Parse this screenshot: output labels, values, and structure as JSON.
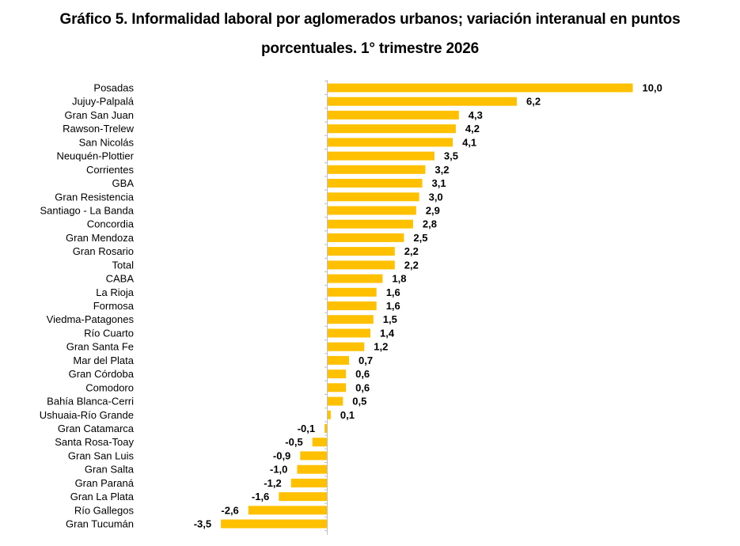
{
  "chart_data": {
    "type": "bar",
    "orientation": "horizontal",
    "title_line1": "Gráfico 5. Informalidad laboral por aglomerados urbanos; variación interanual en puntos",
    "title_line2": "porcentuales. 1° trimestre 2026",
    "categories": [
      "Posadas",
      "Jujuy-Palpalá",
      "Gran San Juan",
      "Rawson-Trelew",
      "San Nicolás",
      "Neuquén-Plottier",
      "Corrientes",
      "GBA",
      "Gran Resistencia",
      "Santiago - La Banda",
      "Concordia",
      "Gran Mendoza",
      "Gran Rosario",
      "Total",
      "CABA",
      "La Rioja",
      "Formosa",
      "Viedma-Patagones",
      "Río Cuarto",
      "Gran Santa Fe",
      "Mar del Plata",
      "Gran Córdoba",
      "Comodoro",
      "Bahía Blanca-Cerri",
      "Ushuaia-Río Grande",
      "Gran Catamarca",
      "Santa Rosa-Toay",
      "Gran San Luis",
      "Gran Salta",
      "Gran Paraná",
      "Gran La Plata",
      "Río Gallegos",
      "Gran Tucumán"
    ],
    "values": [
      10.0,
      6.2,
      4.3,
      4.2,
      4.1,
      3.5,
      3.2,
      3.1,
      3.0,
      2.9,
      2.8,
      2.5,
      2.2,
      2.2,
      1.8,
      1.6,
      1.6,
      1.5,
      1.4,
      1.2,
      0.7,
      0.6,
      0.6,
      0.5,
      0.1,
      -0.1,
      -0.5,
      -0.9,
      -1.0,
      -1.2,
      -1.6,
      -2.6,
      -3.5
    ],
    "value_labels": [
      "10,0",
      "6,2",
      "4,3",
      "4,2",
      "4,1",
      "3,5",
      "3,2",
      "3,1",
      "3,0",
      "2,9",
      "2,8",
      "2,5",
      "2,2",
      "2,2",
      "1,8",
      "1,6",
      "1,6",
      "1,5",
      "1,4",
      "1,2",
      "0,7",
      "0,6",
      "0,6",
      "0,5",
      "0,1",
      "-0,1",
      "-0,5",
      "-0,9",
      "-1,0",
      "-1,2",
      "-1,6",
      "-2,6",
      "-3,5"
    ],
    "xlim": [
      -3.5,
      10.0
    ],
    "bar_color": "#FFC000",
    "axis_color": "#BFBFBF",
    "grid": false,
    "legend": "none"
  }
}
